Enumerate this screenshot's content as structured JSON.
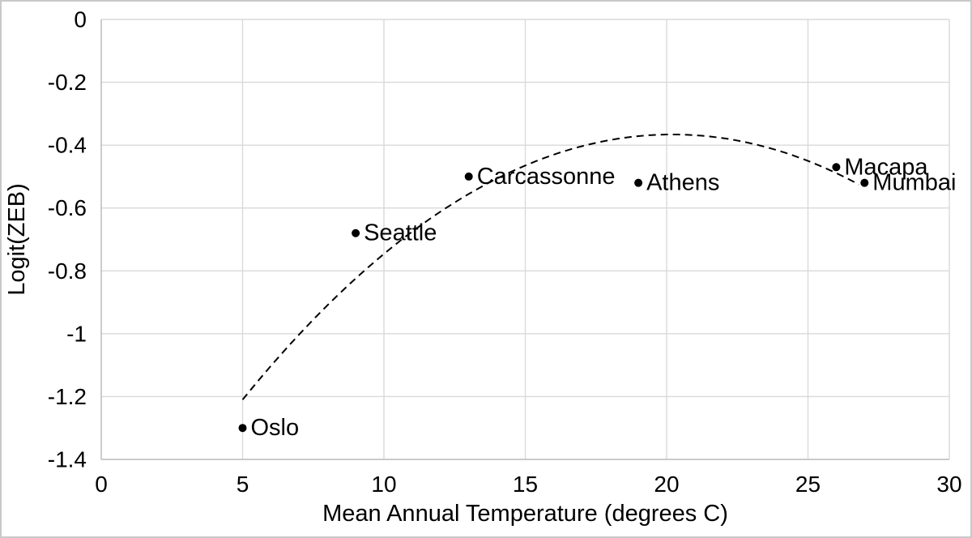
{
  "chart_data": {
    "type": "scatter",
    "title": "",
    "xlabel": "Mean Annual Temperature (degrees C)",
    "ylabel": "Logit(ZEB)",
    "xlim": [
      0,
      30
    ],
    "ylim": [
      -1.4,
      0
    ],
    "xticks": [
      0,
      5,
      10,
      15,
      20,
      25,
      30
    ],
    "xtick_labels": [
      "0",
      "5",
      "10",
      "15",
      "20",
      "25",
      "30"
    ],
    "yticks": [
      0,
      -0.2,
      -0.4,
      -0.6,
      -0.8,
      -1,
      -1.2,
      -1.4
    ],
    "ytick_labels": [
      "0",
      "-0.2",
      "-0.4",
      "-0.6",
      "-0.8",
      "-1",
      "-1.2",
      "-1.4"
    ],
    "grid": true,
    "legend": "none",
    "points": [
      {
        "label": "Oslo",
        "x": 5,
        "y": -1.3
      },
      {
        "label": "Seattle",
        "x": 9,
        "y": -0.68
      },
      {
        "label": "Carcassonne",
        "x": 13,
        "y": -0.5
      },
      {
        "label": "Athens",
        "x": 19,
        "y": -0.52
      },
      {
        "label": "Macapa",
        "x": 26,
        "y": -0.47
      },
      {
        "label": "Mumbai",
        "x": 27,
        "y": -0.52
      }
    ],
    "trendline": {
      "type": "quadratic",
      "a": -0.003653,
      "h": 20.2,
      "k": -0.366,
      "x_start": 5,
      "x_end": 26.9,
      "style": "dashed"
    },
    "colors": {
      "point": "#000000",
      "trendline": "#000000",
      "gridline": "#d9d9d9",
      "axisline": "#bfbfbf",
      "text": "#000000"
    }
  }
}
